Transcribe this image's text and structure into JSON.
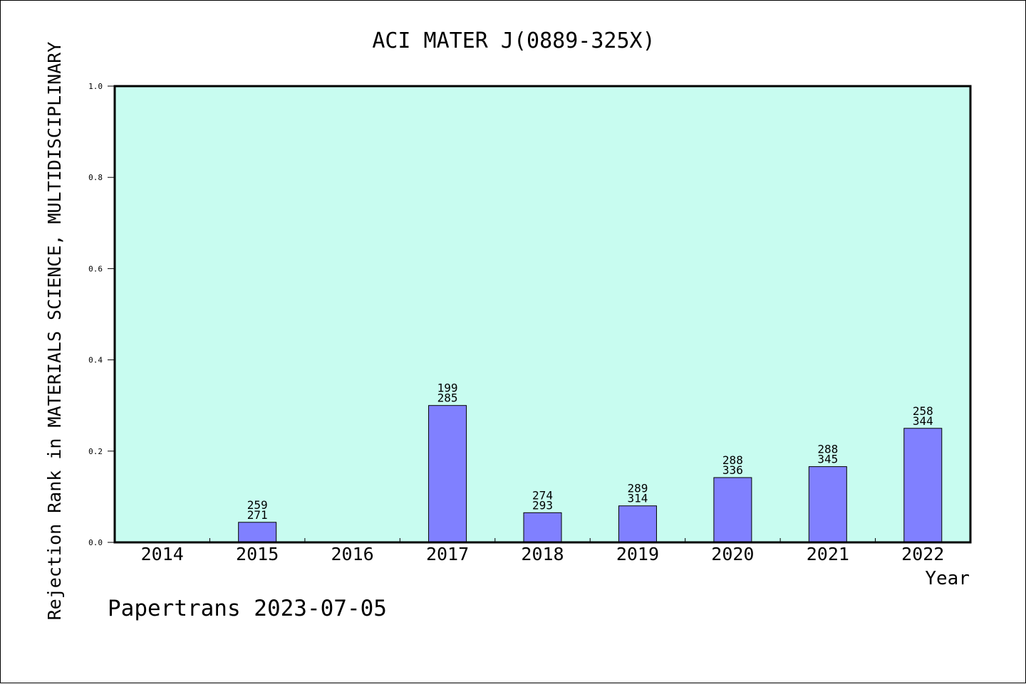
{
  "chart_data": {
    "type": "bar",
    "title": "ACI MATER J(0889-325X)",
    "xlabel": "Year",
    "ylabel": "Rejection Rank in MATERIALS SCIENCE, MULTIDISCIPLINARY",
    "footer": "Papertrans 2023-07-05",
    "categories": [
      "2014",
      "2015",
      "2016",
      "2017",
      "2018",
      "2019",
      "2020",
      "2021",
      "2022"
    ],
    "values": [
      null,
      0.044,
      null,
      0.3,
      0.065,
      0.08,
      0.142,
      0.166,
      0.25
    ],
    "labels_top": [
      "",
      "259",
      "",
      "199",
      "274",
      "289",
      "288",
      "288",
      "258"
    ],
    "labels_bottom": [
      "",
      "271",
      "",
      "285",
      "293",
      "314",
      "336",
      "345",
      "344"
    ],
    "ylim": [
      0,
      1.0
    ],
    "yticks": [
      "0.0",
      "0.2",
      "0.4",
      "0.6",
      "0.8",
      "1.0"
    ],
    "grid": false,
    "colors": {
      "plot_bg": "#c8fcf0",
      "bar": "#8080ff",
      "bar_edge": "#000000"
    }
  }
}
